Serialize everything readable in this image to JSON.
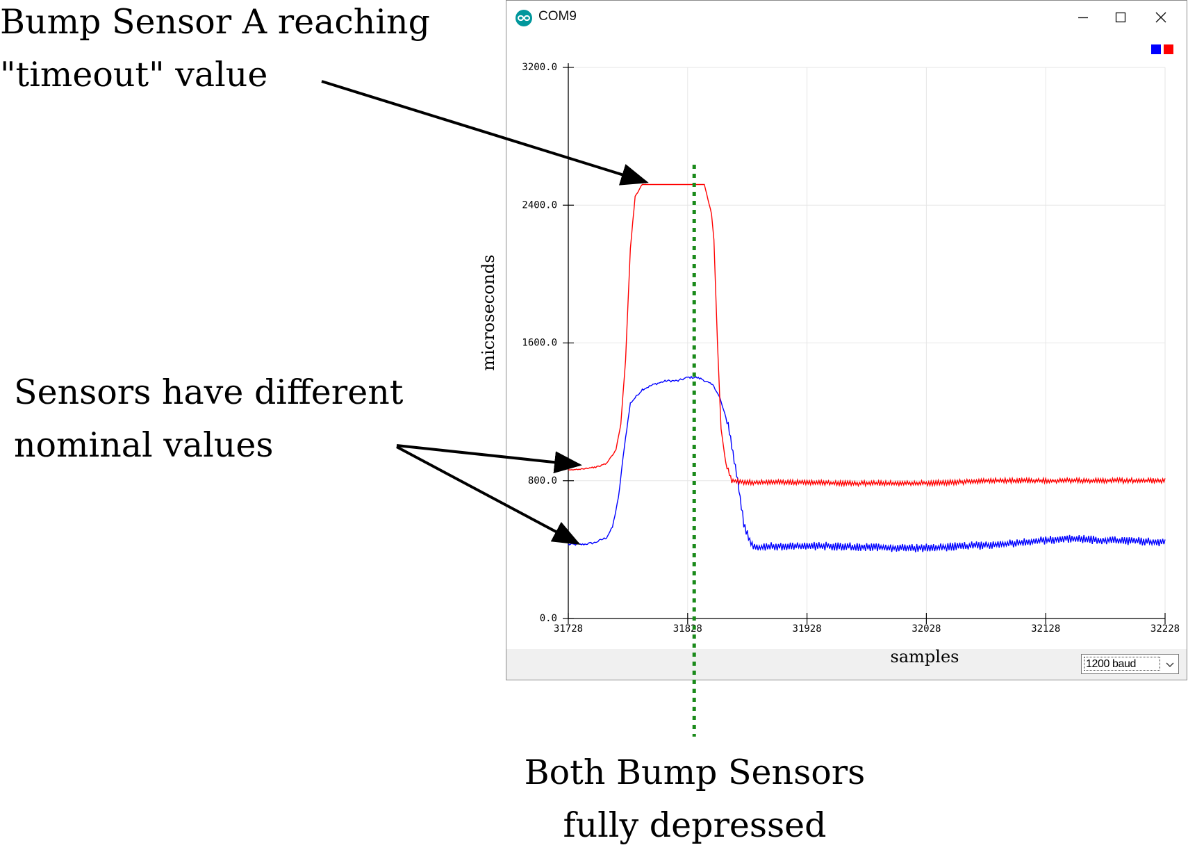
{
  "annotations": {
    "timeout_line1": "Bump Sensor A reaching",
    "timeout_line2": "\"timeout\" value",
    "nominal_line1": "Sensors have different",
    "nominal_line2": "nominal values",
    "depressed_line1": "Both Bump Sensors",
    "depressed_line2": "fully depressed"
  },
  "window": {
    "title": "COM9",
    "icon": "arduino-icon",
    "baud_select": "1200 baud"
  },
  "colors": {
    "sensor_a": "#ff0000",
    "sensor_b": "#0000ff",
    "marker": "#1a8a1a",
    "grid": "#e6e6e6"
  },
  "chart_data": {
    "type": "line",
    "xlabel": "samples",
    "ylabel": "microseconds",
    "xlim": [
      31728,
      32228
    ],
    "ylim": [
      0,
      3200
    ],
    "x_ticks": [
      "31728",
      "31828",
      "31928",
      "32028",
      "32128",
      "32228"
    ],
    "y_ticks": [
      "0.0",
      "800.0",
      "1600.0",
      "2400.0",
      "3200.0"
    ],
    "grid": true,
    "legend": "top-right color squares",
    "marker_line_x": 31830,
    "series": [
      {
        "color": "#0000ff",
        "points": [
          [
            31728,
            430
          ],
          [
            31740,
            430
          ],
          [
            31750,
            440
          ],
          [
            31760,
            470
          ],
          [
            31765,
            530
          ],
          [
            31770,
            700
          ],
          [
            31775,
            1000
          ],
          [
            31780,
            1250
          ],
          [
            31790,
            1330
          ],
          [
            31800,
            1360
          ],
          [
            31810,
            1380
          ],
          [
            31820,
            1380
          ],
          [
            31828,
            1400
          ],
          [
            31835,
            1400
          ],
          [
            31840,
            1390
          ],
          [
            31850,
            1350
          ],
          [
            31855,
            1280
          ],
          [
            31862,
            1120
          ],
          [
            31870,
            800
          ],
          [
            31875,
            550
          ],
          [
            31880,
            450
          ],
          [
            31885,
            410
          ],
          [
            31900,
            420
          ],
          [
            31920,
            420
          ],
          [
            31950,
            420
          ],
          [
            31980,
            415
          ],
          [
            32000,
            410
          ],
          [
            32030,
            410
          ],
          [
            32060,
            420
          ],
          [
            32090,
            430
          ],
          [
            32120,
            450
          ],
          [
            32150,
            465
          ],
          [
            32170,
            455
          ],
          [
            32200,
            450
          ],
          [
            32228,
            440
          ]
        ],
        "noise_amplitude": 25
      },
      {
        "color": "#ff0000",
        "points": [
          [
            31728,
            860
          ],
          [
            31740,
            870
          ],
          [
            31752,
            880
          ],
          [
            31760,
            900
          ],
          [
            31768,
            980
          ],
          [
            31772,
            1130
          ],
          [
            31776,
            1500
          ],
          [
            31780,
            2150
          ],
          [
            31784,
            2450
          ],
          [
            31788,
            2500
          ],
          [
            31790,
            2520
          ],
          [
            31830,
            2520
          ],
          [
            31842,
            2520
          ],
          [
            31848,
            2350
          ],
          [
            31850,
            2200
          ],
          [
            31853,
            1600
          ],
          [
            31856,
            1100
          ],
          [
            31860,
            900
          ],
          [
            31865,
            800
          ],
          [
            31880,
            790
          ],
          [
            31900,
            790
          ],
          [
            31930,
            790
          ],
          [
            31960,
            785
          ],
          [
            31990,
            785
          ],
          [
            32020,
            785
          ],
          [
            32050,
            790
          ],
          [
            32080,
            800
          ],
          [
            32110,
            800
          ],
          [
            32140,
            800
          ],
          [
            32170,
            800
          ],
          [
            32200,
            800
          ],
          [
            32228,
            800
          ]
        ],
        "noise_amplitude": 15
      }
    ]
  }
}
